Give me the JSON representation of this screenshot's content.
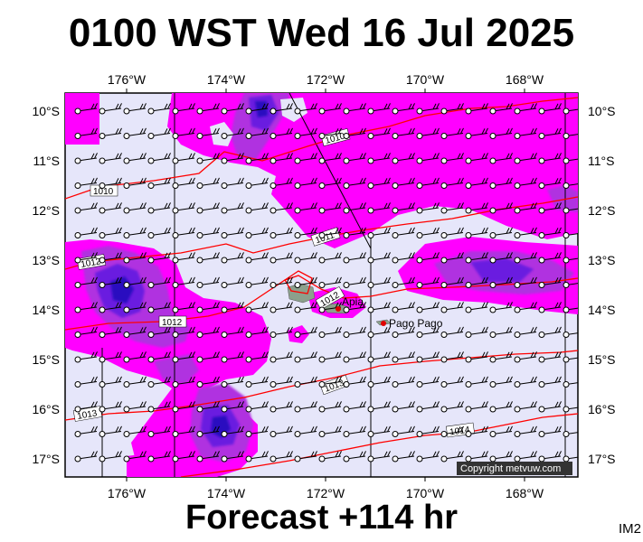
{
  "title": "0100 WST Wed 16 Jul 2025",
  "footer": "Forecast +114 hr",
  "product_code": "IM2",
  "copyright": "Copyright metvuw.com",
  "colors": {
    "background": "#e6e6fa",
    "rain_light": "#ff00ff",
    "rain_medium": "#b030e0",
    "rain_heavy": "#6a1ee0",
    "rain_extreme": "#2a10c0",
    "isobar": "#ff0000",
    "land": "#8ca08c"
  },
  "axes": {
    "lon_labels": [
      "176°W",
      "174°W",
      "172°W",
      "170°W",
      "168°W"
    ],
    "lat_labels": [
      "10°S",
      "11°S",
      "12°S",
      "13°S",
      "14°S",
      "15°S",
      "16°S",
      "17°S"
    ]
  },
  "isobar_labels": [
    "1010",
    "1010",
    "1011",
    "1012",
    "1012",
    "1012",
    "1013",
    "1014",
    "1013"
  ],
  "places": [
    {
      "name": "Apia",
      "marker": "red-dot"
    },
    {
      "name": "Pago Pago",
      "marker": "red-dot"
    }
  ],
  "wind_barbs": "east-southeasterly barbs at every grid point"
}
